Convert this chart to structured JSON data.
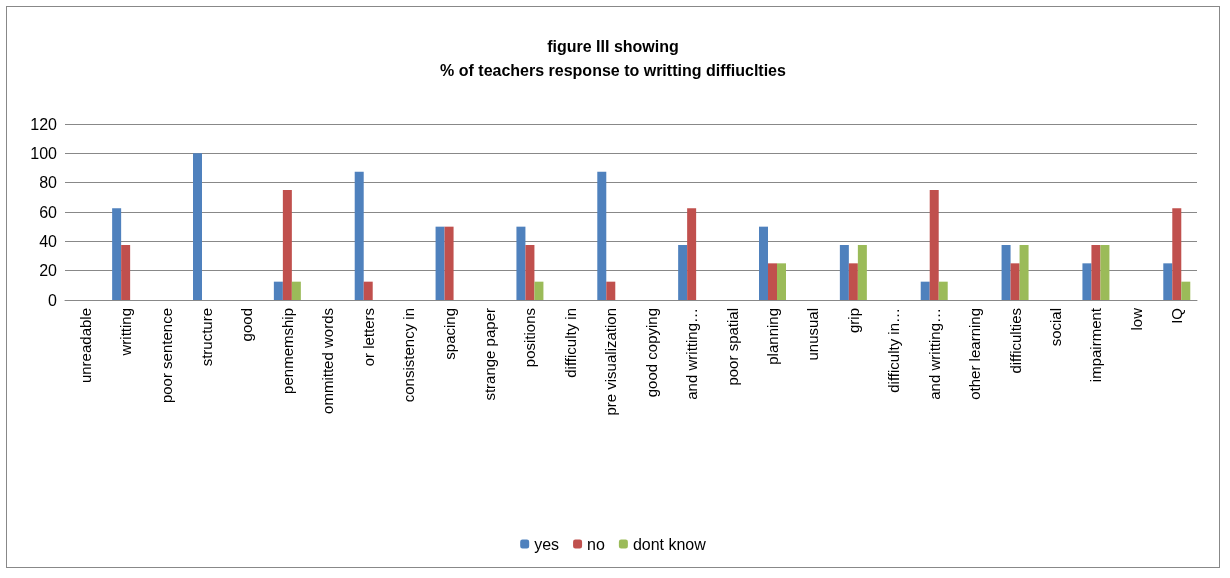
{
  "chart_data": {
    "type": "bar",
    "title": "figure III showing\n% of teachers response to writting diffiuclties",
    "categories": [
      "unreadable",
      "writting",
      "poor sentence",
      "structure",
      "good",
      "penmemship",
      "ommitted words",
      "or letters",
      "consistency in",
      "spacing",
      "strange paper",
      "positions",
      "difficulty in",
      "pre visualization",
      "good copying",
      "and writting…",
      "poor spatial",
      "planning",
      "unusual",
      "grip",
      "difficulty in…",
      "and writting…",
      "other learning",
      "difficulties",
      "social",
      "impairment",
      "low",
      "IQ"
    ],
    "series": [
      {
        "name": "yes",
        "color": "#4f81bd",
        "values": [
          null,
          62.5,
          null,
          100,
          null,
          12.5,
          null,
          87.5,
          null,
          50,
          null,
          50,
          null,
          87.5,
          null,
          37.5,
          null,
          50,
          null,
          37.5,
          null,
          12.5,
          null,
          37.5,
          null,
          25,
          null,
          25
        ]
      },
      {
        "name": "no",
        "color": "#c0504d",
        "values": [
          null,
          37.5,
          null,
          0,
          null,
          75,
          null,
          12.5,
          null,
          50,
          null,
          37.5,
          null,
          12.5,
          null,
          62.5,
          null,
          25,
          null,
          25,
          null,
          75,
          null,
          25,
          null,
          37.5,
          null,
          62.5
        ]
      },
      {
        "name": "dont know",
        "color": "#9bbb59",
        "values": [
          null,
          0,
          null,
          0,
          null,
          12.5,
          null,
          0,
          null,
          0,
          null,
          12.5,
          null,
          0,
          null,
          0,
          null,
          25,
          null,
          37.5,
          null,
          12.5,
          null,
          37.5,
          null,
          37.5,
          null,
          12.5
        ]
      }
    ],
    "ylim": [
      0,
      120
    ],
    "yticks": [
      0,
      20,
      40,
      60,
      80,
      100,
      120
    ],
    "grid": "y",
    "legend": "bottom"
  }
}
